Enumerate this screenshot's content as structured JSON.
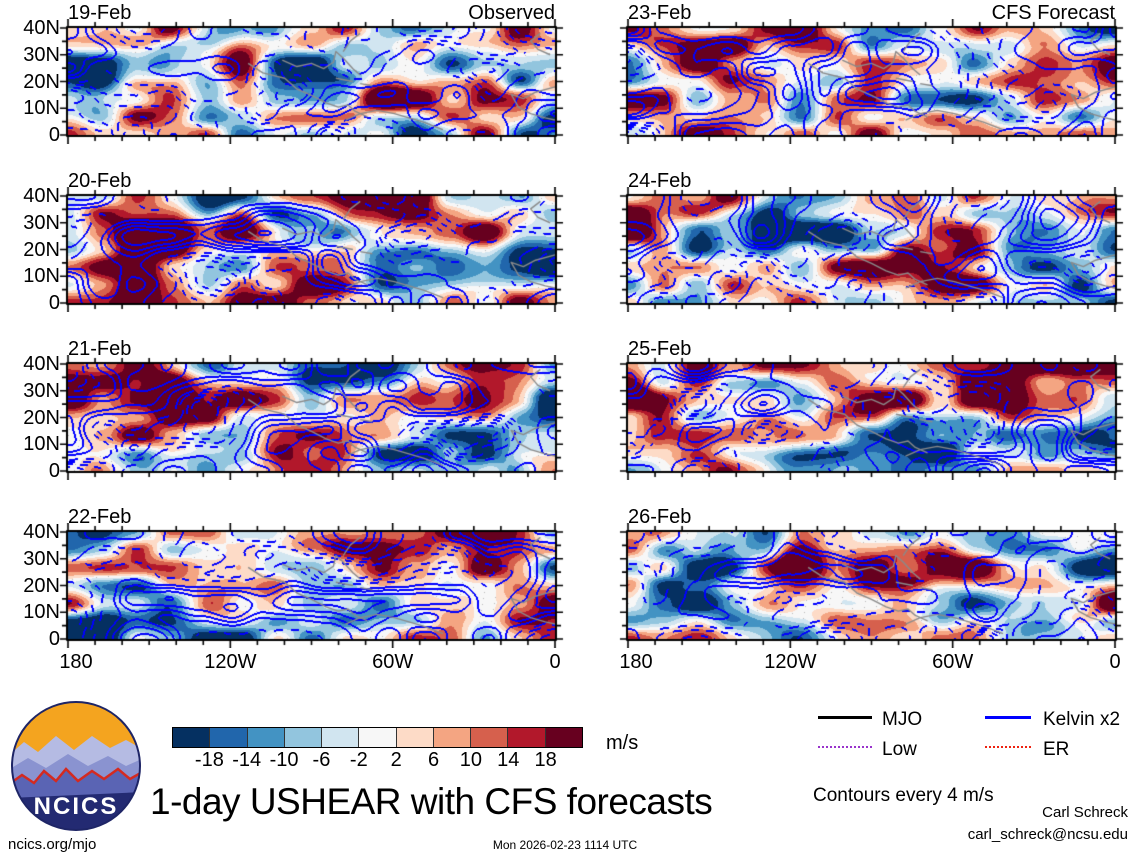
{
  "title": "1-day USHEAR with CFS forecasts",
  "columns": [
    {
      "title": "Observed",
      "panels": [
        {
          "date": "19-Feb"
        },
        {
          "date": "20-Feb"
        },
        {
          "date": "21-Feb"
        },
        {
          "date": "22-Feb"
        }
      ]
    },
    {
      "title": "CFS Forecast",
      "panels": [
        {
          "date": "23-Feb"
        },
        {
          "date": "24-Feb"
        },
        {
          "date": "25-Feb"
        },
        {
          "date": "26-Feb"
        }
      ]
    }
  ],
  "axes": {
    "y_ticks": [
      "40N",
      "30N",
      "20N",
      "10N",
      "0"
    ],
    "x_ticks": [
      "180",
      "120W",
      "60W",
      "0"
    ]
  },
  "colorbar": {
    "tick_labels": [
      "-18",
      "-14",
      "-10",
      "-6",
      "-2",
      "2",
      "6",
      "10",
      "14",
      "18"
    ],
    "colors": [
      "#053061",
      "#2166ac",
      "#4393c3",
      "#92c5de",
      "#d1e5f0",
      "#f7f7f7",
      "#fddbc7",
      "#f4a582",
      "#d6604d",
      "#b2182b",
      "#67001f"
    ],
    "units": "m/s"
  },
  "legend": {
    "items": [
      {
        "label": "MJO",
        "color": "#000000",
        "style": "solid"
      },
      {
        "label": "Kelvin x2",
        "color": "#0000ff",
        "style": "solid"
      },
      {
        "label": "Low",
        "color": "#9933cc",
        "style": "dotted"
      },
      {
        "label": "ER",
        "color": "#ee2211",
        "style": "dotted"
      }
    ],
    "note": "Contours every 4 m/s"
  },
  "footer": {
    "left": "ncics.org/mjo",
    "center": "Mon 2026-02-23 1114 UTC",
    "right_name": "Carl Schreck",
    "right_email": "carl_schreck@ncsu.edu"
  },
  "logo": {
    "text": "NCICS"
  },
  "chart_data": {
    "type": "heatmap",
    "title": "1-day USHEAR with CFS forecasts",
    "description": "Eight longitude-latitude filled-contour panels (0-40N, 180W-0) of 1-day zonal wind shear (USHEAR) anomalies in m/s: observed fields for 19-22 Feb and CFS forecast fields for 23-26 Feb, with blue wave-filtered contour overlays (solid positive, dashed negative) and gray coastlines.",
    "panels": [
      {
        "date": "19-Feb",
        "source": "Observed"
      },
      {
        "date": "20-Feb",
        "source": "Observed"
      },
      {
        "date": "21-Feb",
        "source": "Observed"
      },
      {
        "date": "22-Feb",
        "source": "Observed"
      },
      {
        "date": "23-Feb",
        "source": "CFS Forecast"
      },
      {
        "date": "24-Feb",
        "source": "CFS Forecast"
      },
      {
        "date": "25-Feb",
        "source": "CFS Forecast"
      },
      {
        "date": "26-Feb",
        "source": "CFS Forecast"
      }
    ],
    "x_axis": {
      "ticks": [
        "180",
        "120W",
        "60W",
        "0"
      ],
      "range": "180W to 0 (Greenwich)"
    },
    "y_axis": {
      "ticks": [
        "40N",
        "30N",
        "20N",
        "10N",
        "0"
      ],
      "range": "Equator to 40N"
    },
    "fill_levels_m_s": [
      -18,
      -14,
      -10,
      -6,
      -2,
      2,
      6,
      10,
      14,
      18
    ],
    "fill_colors": [
      "#053061",
      "#2166ac",
      "#4393c3",
      "#92c5de",
      "#d1e5f0",
      "#f7f7f7",
      "#fddbc7",
      "#f4a582",
      "#d6604d",
      "#b2182b",
      "#67001f"
    ],
    "contour_interval_m_s": 4,
    "contour_color": "#0000ff",
    "coast_color": "#8a8a8a",
    "units": "m/s",
    "overlays": [
      "MJO",
      "Kelvin x2",
      "Low",
      "ER"
    ]
  }
}
